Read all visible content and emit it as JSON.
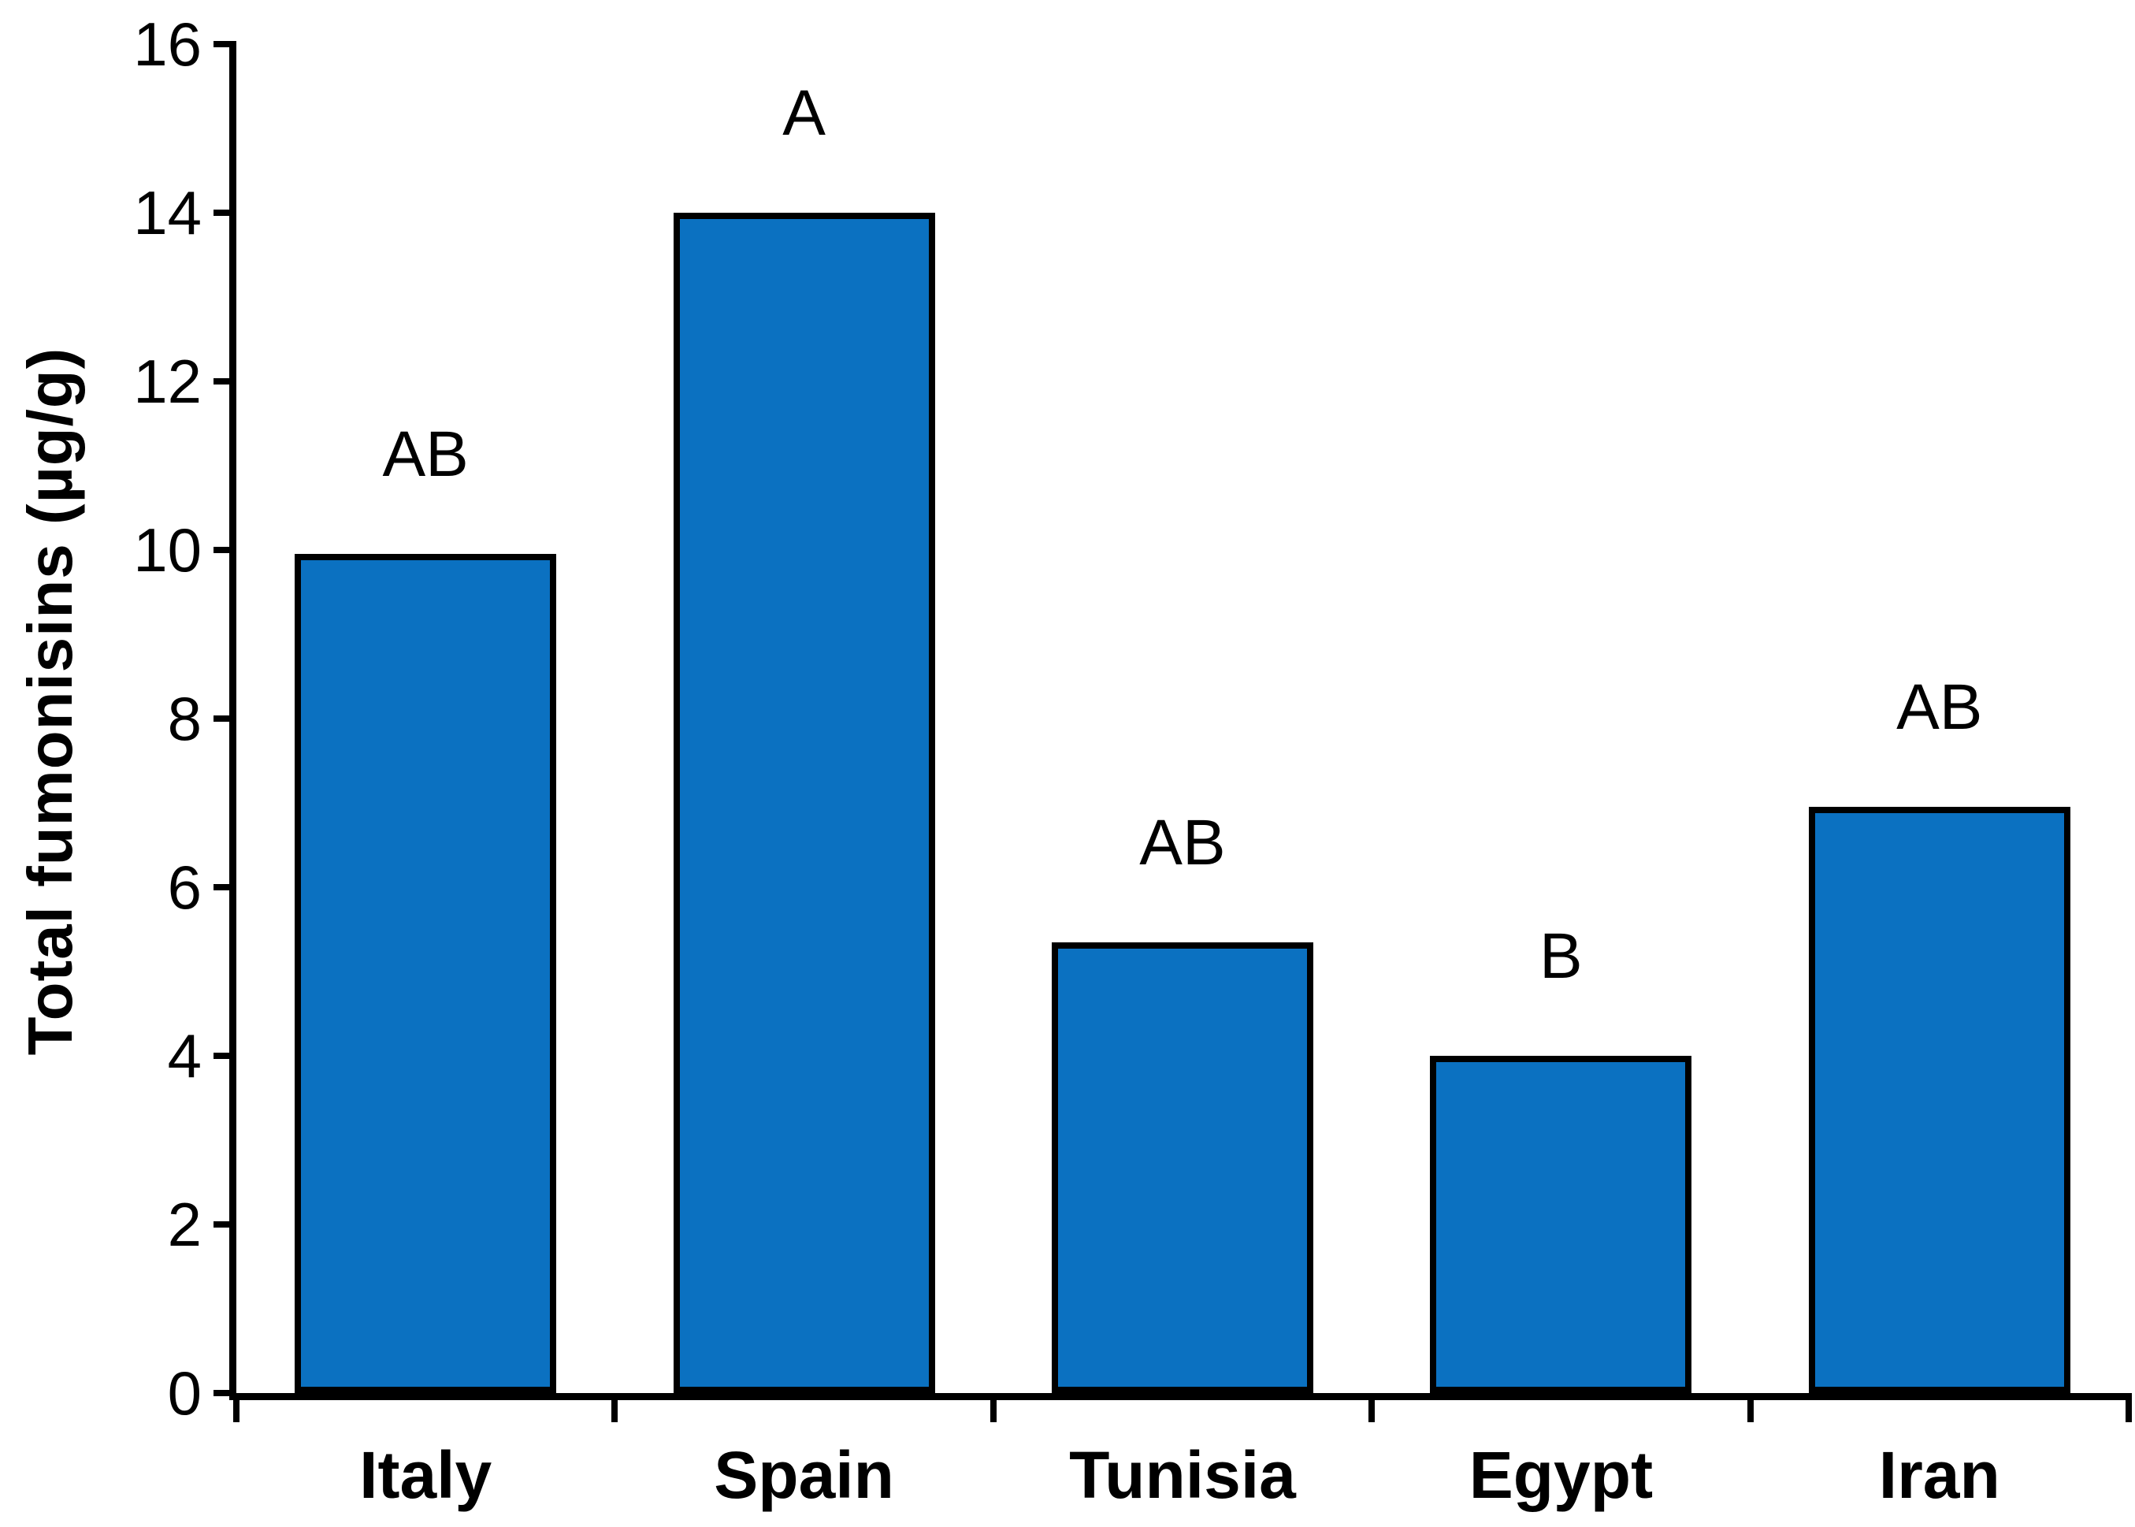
{
  "chart_data": {
    "type": "bar",
    "title": "",
    "categories": [
      "Italy",
      "Spain",
      "Tunisia",
      "Egypt",
      "Iran"
    ],
    "values": [
      9.95,
      14.0,
      5.35,
      4.0,
      6.95
    ],
    "bar_labels": [
      "AB",
      "A",
      "AB",
      "B",
      "AB"
    ],
    "xlabel": "",
    "ylabel": "Total fumonisins (µg/g)",
    "ylim": [
      0,
      16
    ],
    "yticks": [
      0,
      2,
      4,
      6,
      8,
      10,
      12,
      14,
      16
    ],
    "grid": false,
    "legend": false,
    "bar_color": "#0B71C1",
    "bar_border_color": "#000000",
    "axis_color": "#000000",
    "text_color": "#000000"
  }
}
